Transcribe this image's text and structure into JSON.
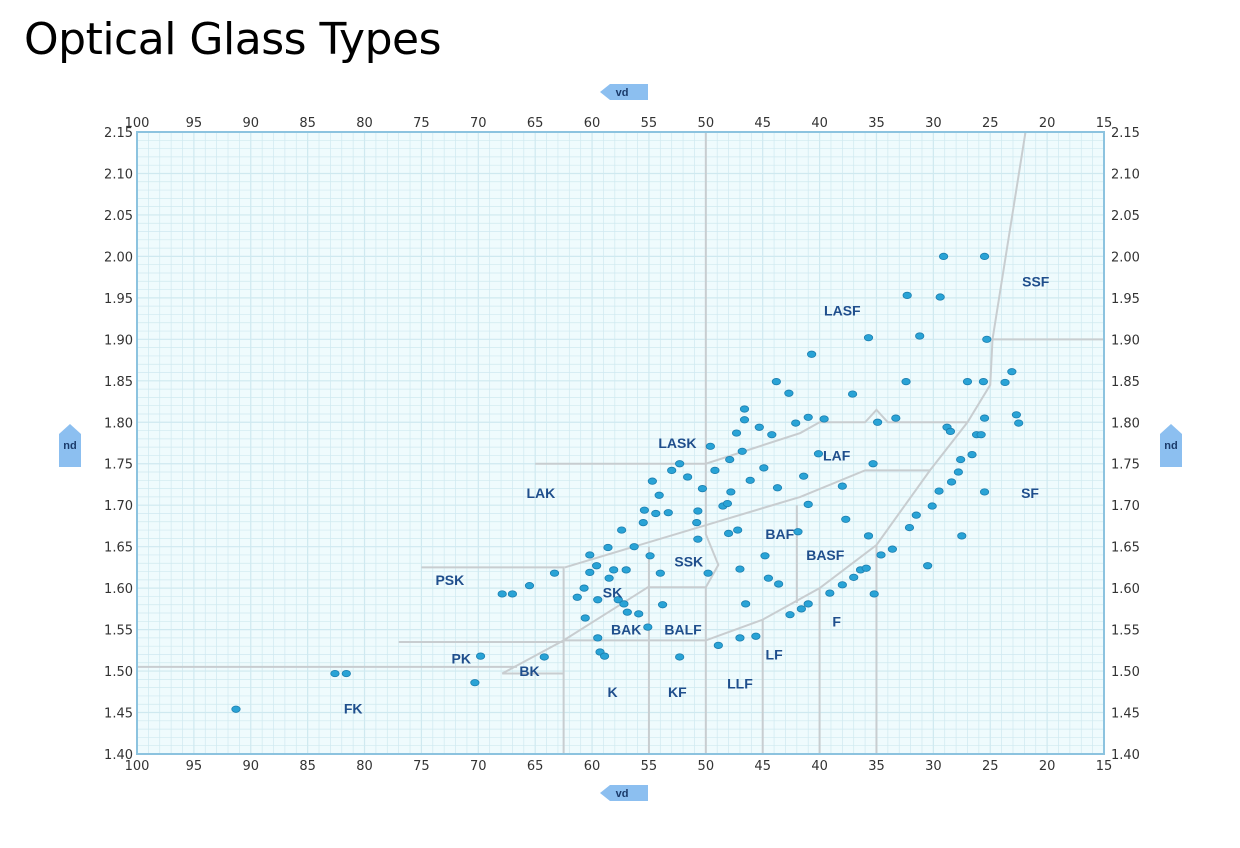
{
  "title": "Optical Glass Types",
  "chart_data": {
    "type": "scatter",
    "title": "Optical Glass Types",
    "xlabel": "vd",
    "ylabel": "nd",
    "xlim": [
      100,
      15
    ],
    "ylim": [
      1.4,
      2.15
    ],
    "x_reversed": true,
    "grid": true,
    "x_ticks": [
      "100",
      "95",
      "90",
      "85",
      "80",
      "75",
      "70",
      "65",
      "60",
      "55",
      "50",
      "45",
      "40",
      "35",
      "30",
      "25",
      "20",
      "15"
    ],
    "y_ticks": [
      "2.15",
      "2.10",
      "2.05",
      "2.00",
      "1.95",
      "1.90",
      "1.85",
      "1.80",
      "1.75",
      "1.70",
      "1.65",
      "1.60",
      "1.55",
      "1.50",
      "1.45",
      "1.40"
    ],
    "colors": {
      "point": "#29a3d6",
      "point_edge": "#1b7fb0",
      "boundary": "#c8cdd0",
      "background": "#effbfd",
      "grid": "#cfe9f0",
      "frame": "#8cc3df",
      "tag": "#8cbff0",
      "label": "#1f4e8c"
    },
    "points": [
      [
        91.3,
        1.454
      ],
      [
        82.6,
        1.497
      ],
      [
        81.6,
        1.497
      ],
      [
        70.3,
        1.486
      ],
      [
        69.8,
        1.518
      ],
      [
        67.9,
        1.593
      ],
      [
        67.0,
        1.593
      ],
      [
        65.5,
        1.603
      ],
      [
        64.2,
        1.517
      ],
      [
        63.3,
        1.618
      ],
      [
        61.3,
        1.589
      ],
      [
        60.7,
        1.6
      ],
      [
        60.6,
        1.564
      ],
      [
        60.2,
        1.64
      ],
      [
        60.2,
        1.619
      ],
      [
        59.6,
        1.627
      ],
      [
        59.5,
        1.54
      ],
      [
        59.5,
        1.586
      ],
      [
        59.3,
        1.523
      ],
      [
        58.9,
        1.518
      ],
      [
        58.6,
        1.649
      ],
      [
        58.5,
        1.612
      ],
      [
        58.1,
        1.622
      ],
      [
        57.7,
        1.586
      ],
      [
        57.4,
        1.67
      ],
      [
        57.2,
        1.581
      ],
      [
        57.0,
        1.622
      ],
      [
        56.9,
        1.571
      ],
      [
        56.3,
        1.65
      ],
      [
        55.9,
        1.569
      ],
      [
        55.5,
        1.679
      ],
      [
        55.4,
        1.694
      ],
      [
        55.1,
        1.553
      ],
      [
        54.9,
        1.639
      ],
      [
        54.7,
        1.729
      ],
      [
        54.4,
        1.69
      ],
      [
        54.1,
        1.712
      ],
      [
        54.0,
        1.618
      ],
      [
        53.8,
        1.58
      ],
      [
        53.3,
        1.691
      ],
      [
        53.0,
        1.742
      ],
      [
        52.3,
        1.75
      ],
      [
        52.3,
        1.517
      ],
      [
        51.6,
        1.734
      ],
      [
        50.8,
        1.679
      ],
      [
        50.7,
        1.693
      ],
      [
        50.7,
        1.659
      ],
      [
        50.3,
        1.72
      ],
      [
        49.8,
        1.618
      ],
      [
        49.6,
        1.771
      ],
      [
        49.2,
        1.742
      ],
      [
        48.9,
        1.531
      ],
      [
        48.5,
        1.699
      ],
      [
        48.1,
        1.702
      ],
      [
        48.0,
        1.666
      ],
      [
        47.9,
        1.755
      ],
      [
        47.8,
        1.716
      ],
      [
        47.3,
        1.787
      ],
      [
        47.2,
        1.67
      ],
      [
        47.0,
        1.623
      ],
      [
        47.0,
        1.54
      ],
      [
        46.8,
        1.765
      ],
      [
        46.6,
        1.803
      ],
      [
        46.6,
        1.816
      ],
      [
        46.5,
        1.581
      ],
      [
        46.1,
        1.73
      ],
      [
        45.6,
        1.542
      ],
      [
        45.3,
        1.794
      ],
      [
        44.9,
        1.745
      ],
      [
        44.8,
        1.639
      ],
      [
        44.5,
        1.612
      ],
      [
        44.2,
        1.785
      ],
      [
        43.8,
        1.849
      ],
      [
        43.7,
        1.721
      ],
      [
        43.6,
        1.605
      ],
      [
        42.7,
        1.835
      ],
      [
        42.6,
        1.568
      ],
      [
        42.1,
        1.799
      ],
      [
        41.9,
        1.668
      ],
      [
        41.6,
        1.575
      ],
      [
        41.4,
        1.735
      ],
      [
        41.0,
        1.806
      ],
      [
        41.0,
        1.581
      ],
      [
        41.0,
        1.701
      ],
      [
        40.7,
        1.882
      ],
      [
        40.1,
        1.762
      ],
      [
        39.6,
        1.804
      ],
      [
        39.1,
        1.594
      ],
      [
        38.0,
        1.604
      ],
      [
        38.0,
        1.723
      ],
      [
        37.7,
        1.683
      ],
      [
        37.1,
        1.834
      ],
      [
        37.0,
        1.613
      ],
      [
        36.4,
        1.622
      ],
      [
        35.9,
        1.624
      ],
      [
        35.7,
        1.663
      ],
      [
        35.7,
        1.902
      ],
      [
        35.3,
        1.75
      ],
      [
        35.2,
        1.593
      ],
      [
        34.9,
        1.8
      ],
      [
        34.6,
        1.64
      ],
      [
        33.6,
        1.647
      ],
      [
        33.3,
        1.805
      ],
      [
        32.4,
        1.849
      ],
      [
        32.3,
        1.953
      ],
      [
        32.1,
        1.673
      ],
      [
        31.5,
        1.688
      ],
      [
        31.2,
        1.904
      ],
      [
        30.5,
        1.627
      ],
      [
        30.1,
        1.699
      ],
      [
        29.5,
        1.717
      ],
      [
        29.4,
        1.951
      ],
      [
        29.1,
        2.0
      ],
      [
        28.8,
        1.794
      ],
      [
        28.5,
        1.789
      ],
      [
        28.4,
        1.728
      ],
      [
        27.8,
        1.74
      ],
      [
        27.6,
        1.755
      ],
      [
        27.5,
        1.663
      ],
      [
        27.0,
        1.849
      ],
      [
        26.6,
        1.761
      ],
      [
        26.2,
        1.785
      ],
      [
        25.8,
        1.785
      ],
      [
        25.6,
        1.849
      ],
      [
        25.5,
        2.0
      ],
      [
        25.5,
        1.716
      ],
      [
        25.5,
        1.805
      ],
      [
        25.3,
        1.9
      ],
      [
        23.7,
        1.848
      ],
      [
        23.1,
        1.861
      ],
      [
        22.7,
        1.809
      ],
      [
        22.5,
        1.799
      ]
    ],
    "boundaries": [
      [
        [
          50,
          2.15
        ],
        [
          50,
          1.665
        ],
        [
          48.9,
          1.628
        ],
        [
          50,
          1.601
        ],
        [
          50,
          1.4
        ]
      ],
      [
        [
          100,
          1.505
        ],
        [
          66.6,
          1.505
        ]
      ],
      [
        [
          77,
          1.535
        ],
        [
          62.5,
          1.535
        ]
      ],
      [
        [
          67.9,
          1.497
        ],
        [
          62.5,
          1.497
        ]
      ],
      [
        [
          67.9,
          1.497
        ],
        [
          62.5,
          1.537
        ],
        [
          55.1,
          1.601
        ],
        [
          50,
          1.601
        ]
      ],
      [
        [
          75,
          1.625
        ],
        [
          62.5,
          1.625
        ],
        [
          62.5,
          1.4
        ]
      ],
      [
        [
          62.4,
          1.625
        ],
        [
          41.7,
          1.71
        ],
        [
          36,
          1.742
        ],
        [
          30.3,
          1.742
        ]
      ],
      [
        [
          65,
          1.75
        ],
        [
          50,
          1.75
        ],
        [
          41.7,
          1.787
        ],
        [
          40,
          1.8
        ],
        [
          36,
          1.8
        ],
        [
          35,
          1.815
        ],
        [
          34,
          1.8
        ],
        [
          27,
          1.8
        ]
      ],
      [
        [
          62.5,
          1.537
        ],
        [
          50,
          1.537
        ],
        [
          45,
          1.562
        ],
        [
          40,
          1.6
        ],
        [
          35,
          1.652
        ],
        [
          30.3,
          1.742
        ],
        [
          27,
          1.8
        ],
        [
          25,
          1.845
        ],
        [
          24.8,
          1.9
        ],
        [
          21.9,
          2.15
        ]
      ],
      [
        [
          24.8,
          1.9
        ],
        [
          15,
          1.9
        ]
      ],
      [
        [
          55,
          1.65
        ],
        [
          55,
          1.4
        ]
      ],
      [
        [
          45,
          1.562
        ],
        [
          45,
          1.4
        ]
      ],
      [
        [
          40,
          1.6
        ],
        [
          40,
          1.4
        ]
      ],
      [
        [
          35,
          1.652
        ],
        [
          35,
          1.4
        ]
      ],
      [
        [
          42,
          1.7
        ],
        [
          42,
          1.582
        ]
      ]
    ],
    "region_labels": [
      {
        "text": "SSF",
        "x": 21,
        "y": 1.97
      },
      {
        "text": "LASF",
        "x": 38,
        "y": 1.935
      },
      {
        "text": "LASK",
        "x": 52.5,
        "y": 1.775
      },
      {
        "text": "LAF",
        "x": 38.5,
        "y": 1.76
      },
      {
        "text": "LAK",
        "x": 64.5,
        "y": 1.715
      },
      {
        "text": "SF",
        "x": 21.5,
        "y": 1.715
      },
      {
        "text": "BAF",
        "x": 43.5,
        "y": 1.665
      },
      {
        "text": "BASF",
        "x": 39.5,
        "y": 1.64
      },
      {
        "text": "SSK",
        "x": 51.5,
        "y": 1.632
      },
      {
        "text": "PSK",
        "x": 72.5,
        "y": 1.61
      },
      {
        "text": "SK",
        "x": 58.2,
        "y": 1.595
      },
      {
        "text": "BAK",
        "x": 57,
        "y": 1.55
      },
      {
        "text": "BALF",
        "x": 52,
        "y": 1.55
      },
      {
        "text": "F",
        "x": 38.5,
        "y": 1.56
      },
      {
        "text": "LF",
        "x": 44,
        "y": 1.52
      },
      {
        "text": "PK",
        "x": 71.5,
        "y": 1.515
      },
      {
        "text": "BK",
        "x": 65.5,
        "y": 1.5
      },
      {
        "text": "K",
        "x": 58.2,
        "y": 1.475
      },
      {
        "text": "KF",
        "x": 52.5,
        "y": 1.475
      },
      {
        "text": "LLF",
        "x": 47,
        "y": 1.485
      },
      {
        "text": "FK",
        "x": 81,
        "y": 1.455
      }
    ]
  }
}
